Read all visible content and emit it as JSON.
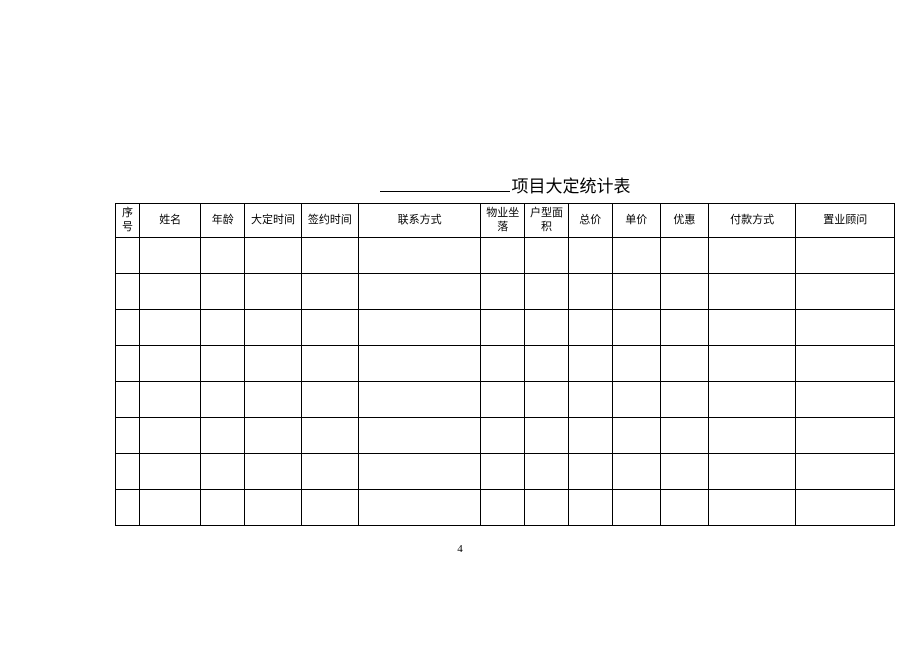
{
  "title_suffix": "项目大定统计表",
  "table": {
    "columns": [
      {
        "label": "序号",
        "class": "col-0"
      },
      {
        "label": "姓名",
        "class": "col-1"
      },
      {
        "label": "年龄",
        "class": "col-2"
      },
      {
        "label": "大定时间",
        "class": "col-3"
      },
      {
        "label": "签约时间",
        "class": "col-4"
      },
      {
        "label": "联系方式",
        "class": "col-5"
      },
      {
        "label": "物业坐落",
        "class": "col-6"
      },
      {
        "label": "户型面积",
        "class": "col-7"
      },
      {
        "label": "总价",
        "class": "col-8"
      },
      {
        "label": "单价",
        "class": "col-9"
      },
      {
        "label": "优惠",
        "class": "col-10"
      },
      {
        "label": "付款方式",
        "class": "col-11"
      },
      {
        "label": "置业顾问",
        "class": "col-12"
      }
    ],
    "empty_row_count": 8
  },
  "page_number": "4"
}
